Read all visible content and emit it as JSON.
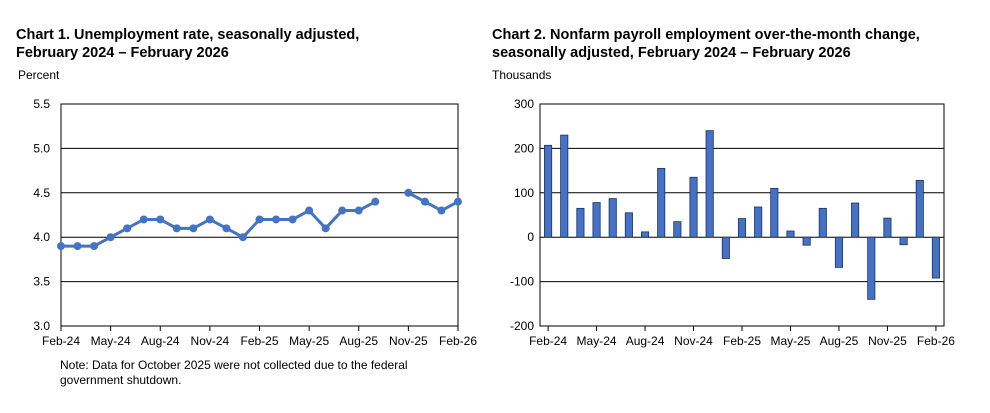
{
  "chart_data": [
    {
      "type": "line",
      "title_line1": "Chart 1. Unemployment rate, seasonally adjusted,",
      "title_line2": "February 2024 – February 2026",
      "ylabel": "Percent",
      "ylim": [
        3.0,
        5.5
      ],
      "yticks": [
        "3.0",
        "3.5",
        "4.0",
        "4.5",
        "5.0",
        "5.5"
      ],
      "x_tick_labels": [
        "Feb-24",
        "May-24",
        "Aug-24",
        "Nov-24",
        "Feb-25",
        "May-25",
        "Aug-25",
        "Nov-25",
        "Feb-26"
      ],
      "grid": true,
      "color": "#4472C4",
      "categories": [
        "Feb-24",
        "Mar-24",
        "Apr-24",
        "May-24",
        "Jun-24",
        "Jul-24",
        "Aug-24",
        "Sep-24",
        "Oct-24",
        "Nov-24",
        "Dec-24",
        "Jan-25",
        "Feb-25",
        "Mar-25",
        "Apr-25",
        "May-25",
        "Jun-25",
        "Jul-25",
        "Aug-25",
        "Sep-25",
        "Oct-25",
        "Nov-25",
        "Dec-25",
        "Jan-26",
        "Feb-26"
      ],
      "values": [
        3.9,
        3.9,
        3.9,
        4.0,
        4.1,
        4.2,
        4.2,
        4.1,
        4.1,
        4.2,
        4.1,
        4.0,
        4.2,
        4.2,
        4.2,
        4.3,
        4.1,
        4.3,
        4.3,
        4.4,
        null,
        4.5,
        4.4,
        4.3,
        4.4
      ],
      "note_line1": "Note: Data for October 2025 were not collected due to the federal",
      "note_line2": "government shutdown."
    },
    {
      "type": "bar",
      "title_line1": "Chart 2. Nonfarm payroll employment over-the-month change,",
      "title_line2": "seasonally adjusted, February 2024 – February 2026",
      "ylabel": "Thousands",
      "ylim": [
        -200,
        300
      ],
      "yticks": [
        "-200",
        "-100",
        "0",
        "100",
        "200",
        "300"
      ],
      "x_tick_labels": [
        "Feb-24",
        "May-24",
        "Aug-24",
        "Nov-24",
        "Feb-25",
        "May-25",
        "Aug-25",
        "Nov-25",
        "Feb-26"
      ],
      "grid": true,
      "color": "#4472C4",
      "categories": [
        "Feb-24",
        "Mar-24",
        "Apr-24",
        "May-24",
        "Jun-24",
        "Jul-24",
        "Aug-24",
        "Sep-24",
        "Oct-24",
        "Nov-24",
        "Dec-24",
        "Jan-25",
        "Feb-25",
        "Mar-25",
        "Apr-25",
        "May-25",
        "Jun-25",
        "Jul-25",
        "Aug-25",
        "Sep-25",
        "Oct-25",
        "Nov-25",
        "Dec-25",
        "Jan-26",
        "Feb-26"
      ],
      "values": [
        207,
        230,
        65,
        78,
        87,
        55,
        12,
        155,
        35,
        135,
        240,
        -48,
        42,
        68,
        110,
        14,
        -18,
        65,
        -68,
        77,
        -140,
        43,
        -17,
        128,
        -92
      ]
    }
  ]
}
